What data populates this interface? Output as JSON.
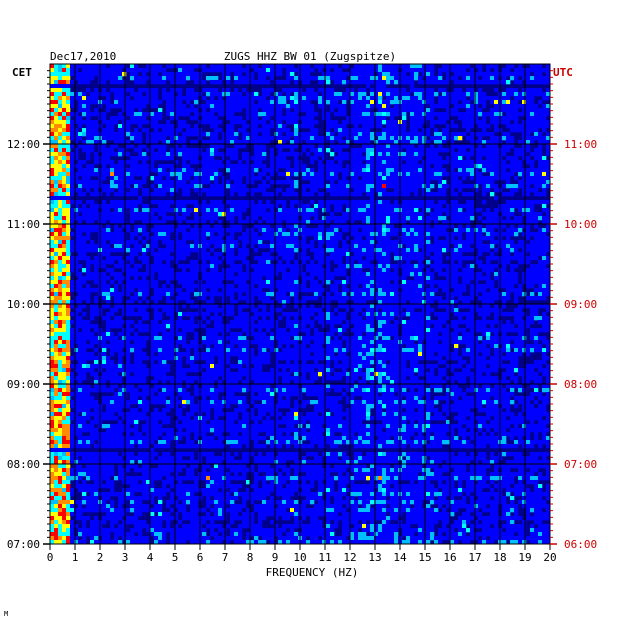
{
  "chart_data": {
    "type": "heatmap",
    "title": "ZUGS HHZ BW 01 (Zugspitze)",
    "date": "Dec17,2010",
    "left_axis_label": "CET",
    "right_axis_label": "UTC",
    "xlabel": "FREQUENCY (HZ)",
    "x_ticks": [
      "0",
      "1",
      "2",
      "3",
      "4",
      "5",
      "6",
      "7",
      "8",
      "9",
      "10",
      "11",
      "12",
      "13",
      "14",
      "15",
      "16",
      "17",
      "18",
      "19",
      "20"
    ],
    "xlim": [
      0,
      20
    ],
    "left_time_ticks": [
      "07:00",
      "08:00",
      "09:00",
      "10:00",
      "11:00",
      "12:00"
    ],
    "right_time_ticks": [
      "06:00",
      "07:00",
      "08:00",
      "09:00",
      "10:00",
      "11:00"
    ],
    "time_range_cet": [
      "07:00",
      "13:00"
    ],
    "colormap": [
      "#00008b",
      "#0000ff",
      "#00bfff",
      "#00ffff",
      "#ffff00",
      "#ff8c00",
      "#ff0000"
    ],
    "strong_energy_bands_hz": [
      [
        0,
        0.8
      ]
    ],
    "notable_frequency_lines_hz": [
      9.8,
      11.1,
      12.8,
      13.3,
      15.1
    ],
    "utc_label_color": "#cc0000",
    "grid": true
  },
  "footer_mark": "M"
}
